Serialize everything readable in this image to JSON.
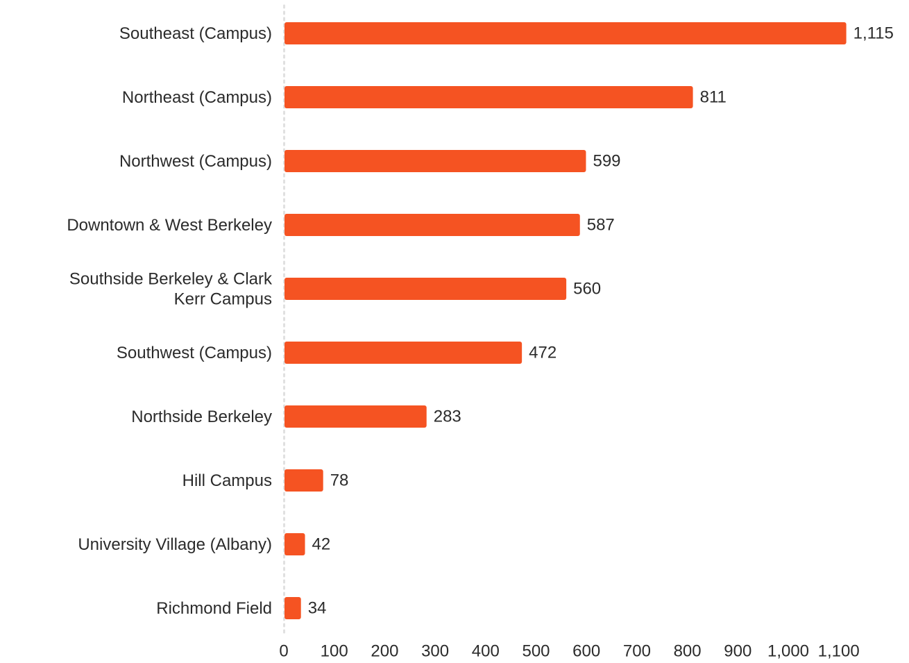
{
  "chart_data": {
    "type": "bar",
    "orientation": "horizontal",
    "title": "",
    "xlabel": "",
    "ylabel": "",
    "categories": [
      "Southeast (Campus)",
      "Northeast (Campus)",
      "Northwest (Campus)",
      "Downtown & West Berkeley",
      "Southside Berkeley & Clark Kerr Campus",
      "Southwest (Campus)",
      "Northside Berkeley",
      "Hill Campus",
      "University Village (Albany)",
      "Richmond Field"
    ],
    "values": [
      1115,
      811,
      599,
      587,
      560,
      472,
      283,
      78,
      42,
      34
    ],
    "value_labels": [
      "1,115",
      "811",
      "599",
      "587",
      "560",
      "472",
      "283",
      "78",
      "42",
      "34"
    ],
    "xlim": [
      0,
      1100
    ],
    "xticks": [
      0,
      100,
      200,
      300,
      400,
      500,
      600,
      700,
      800,
      900,
      1000,
      1100
    ],
    "xtick_labels": [
      "0",
      "100",
      "200",
      "300",
      "400",
      "500",
      "600",
      "700",
      "800",
      "900",
      "1,000",
      "1,100"
    ],
    "grid": false,
    "legend": "none",
    "bar_color": "#f55322",
    "text_color": "#2b2b2b",
    "axis_color": "#e0e0e0"
  }
}
